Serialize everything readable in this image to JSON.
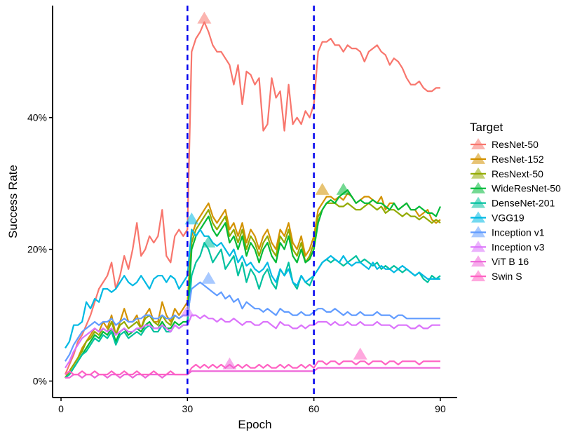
{
  "chart_data": {
    "type": "line",
    "xlabel": "Epoch",
    "ylabel": "Success Rate",
    "xlim": [
      -2,
      94
    ],
    "ylim": [
      -2.5,
      57
    ],
    "x_ticks": [
      0,
      30,
      60,
      90
    ],
    "x_tick_labels": [
      "0",
      "30",
      "60",
      "90"
    ],
    "y_ticks": [
      0,
      20,
      40
    ],
    "y_tick_labels": [
      "0%",
      "20%",
      "40%"
    ],
    "vlines": [
      30,
      60
    ],
    "vline_color": "#0000ee",
    "legend_title": "Target",
    "legend_position": "right",
    "grid": false,
    "series": [
      {
        "name": "ResNet-50",
        "color": "#F8766D",
        "values": [
          1,
          2.5,
          4,
          6,
          7,
          8.5,
          10,
          12,
          14,
          15,
          16,
          18,
          14,
          16,
          19,
          17,
          20,
          24,
          19,
          20,
          22,
          21,
          22,
          26,
          19,
          18,
          22,
          23,
          22,
          23,
          50,
          52,
          53,
          54.5,
          53,
          51,
          50,
          50,
          49,
          48,
          45,
          48,
          42,
          47,
          46.5,
          45,
          46,
          38,
          39,
          46,
          43,
          44,
          38,
          45,
          39,
          40,
          39,
          41,
          40,
          42,
          50,
          51.5,
          51.5,
          52,
          51,
          51,
          50,
          51,
          50.5,
          50.5,
          50,
          48.5,
          50,
          50.5,
          51,
          50,
          49.5,
          48,
          49,
          48.5,
          47.5,
          46,
          45,
          45,
          45.5,
          44.5,
          44,
          44,
          44.5,
          44.5
        ],
        "marker_epoch": 34,
        "marker_value": 55
      },
      {
        "name": "ResNet-152",
        "color": "#D39200",
        "values": [
          0.5,
          1.5,
          2.5,
          3.5,
          5,
          6,
          7,
          8,
          7.5,
          9,
          8,
          10,
          7,
          9,
          11,
          9,
          9,
          10,
          8,
          10,
          11,
          9,
          9,
          12,
          10,
          9,
          11,
          10,
          11,
          12,
          22,
          24,
          25,
          26,
          27,
          25,
          24,
          25,
          26,
          23,
          24,
          22,
          24,
          21,
          23,
          22,
          20,
          22,
          23,
          21,
          20,
          23,
          22,
          24,
          21,
          20,
          22,
          19,
          20,
          22,
          26,
          27,
          28,
          28,
          27.5,
          28,
          27.5,
          28.5,
          28,
          27,
          27.5,
          28,
          28,
          27.5,
          27,
          28,
          26,
          27,
          27,
          26,
          26.5,
          27,
          26,
          26,
          25,
          25.5,
          26,
          24.5,
          24,
          24.5
        ],
        "marker_epoch": 62,
        "marker_value": 29
      },
      {
        "name": "ResNext-50",
        "color": "#93AA00",
        "values": [
          0.5,
          1.5,
          2.5,
          3.5,
          4.5,
          6,
          6.5,
          7.5,
          7,
          8,
          7.5,
          9,
          7,
          8.5,
          9,
          8,
          8.5,
          9,
          8,
          9.5,
          10,
          9,
          8.5,
          10,
          9,
          8.5,
          10,
          9.5,
          10,
          10,
          21,
          23,
          24,
          25,
          26,
          24,
          23,
          24,
          25,
          22,
          23,
          21,
          23,
          20,
          22,
          21,
          19,
          21,
          22,
          20,
          19,
          22,
          21,
          23,
          20,
          19,
          21,
          18,
          19,
          21,
          25,
          26,
          27,
          27,
          27,
          26.5,
          26.5,
          27,
          26.5,
          26,
          26,
          26.5,
          27,
          26.5,
          26,
          26.5,
          25.5,
          26,
          26,
          25.5,
          25,
          25.5,
          25,
          25,
          24.5,
          25,
          24.5,
          24,
          24.5,
          24
        ],
        "marker_epoch": null,
        "marker_value": null
      },
      {
        "name": "WideResNet-50",
        "color": "#00BA38",
        "values": [
          0.5,
          1,
          2,
          3,
          4,
          5,
          6,
          7,
          6.5,
          7.5,
          7,
          8,
          6,
          7.5,
          8,
          7,
          7.5,
          8,
          7.5,
          8.5,
          9,
          8,
          8,
          9,
          8,
          8,
          9,
          8.5,
          9,
          9,
          20,
          22,
          23,
          24,
          25,
          23,
          22,
          23,
          24,
          21,
          22,
          20,
          22,
          19,
          21,
          20,
          18,
          20,
          21,
          19,
          18,
          21,
          20,
          22,
          19,
          18,
          20,
          18,
          18.5,
          20,
          24,
          26,
          27,
          27.5,
          27,
          28,
          28.5,
          29,
          28,
          27,
          27.5,
          27,
          27,
          27.5,
          27,
          27,
          26.5,
          26,
          27,
          26,
          26.5,
          27,
          26,
          26,
          26.5,
          26,
          25.5,
          25.5,
          25,
          26.5
        ],
        "marker_epoch": 67,
        "marker_value": 29
      },
      {
        "name": "DenseNet-201",
        "color": "#00C19F",
        "values": [
          0.5,
          1,
          2,
          3,
          4,
          4.5,
          5.5,
          6.5,
          6,
          7,
          6.5,
          7.5,
          5.5,
          7,
          7.5,
          6.5,
          7,
          7.5,
          7,
          8,
          8.5,
          7.5,
          7.5,
          8.5,
          7.5,
          7.5,
          8.5,
          8,
          8.5,
          8.5,
          16,
          18,
          19,
          21,
          20,
          18,
          19,
          20,
          17,
          18,
          19,
          16,
          18,
          15,
          17,
          16,
          14,
          16,
          17,
          15,
          14,
          17,
          16,
          18,
          15,
          14,
          16,
          15,
          14.5,
          16,
          17,
          18,
          18.5,
          18,
          18.5,
          18,
          17.5,
          18,
          18.5,
          19,
          18,
          18.5,
          18,
          17.5,
          18,
          17,
          17.5,
          17,
          17.5,
          17,
          16.5,
          17,
          16.5,
          16,
          16.5,
          15.5,
          15,
          16,
          15.5,
          16
        ],
        "marker_epoch": 35,
        "marker_value": 21
      },
      {
        "name": "VGG19",
        "color": "#00B9E3",
        "values": [
          5,
          6,
          8.5,
          8.5,
          9,
          12,
          11,
          12.5,
          12,
          14,
          14,
          13.5,
          14,
          15,
          16,
          15,
          14.5,
          15,
          16,
          15,
          14,
          15.5,
          16,
          16,
          15,
          16,
          15.5,
          14,
          15,
          16,
          23,
          22,
          23,
          22,
          22,
          21,
          20.5,
          21,
          20,
          19,
          20,
          18,
          19,
          17.5,
          18,
          17,
          16.5,
          17,
          18,
          16,
          15,
          17,
          16,
          17,
          15,
          14.5,
          16,
          15,
          15.5,
          16,
          17,
          18,
          18.5,
          19,
          18.5,
          18,
          19,
          18,
          17.5,
          18,
          18,
          17.5,
          17,
          18,
          17,
          17.5,
          17,
          17,
          16.5,
          17,
          17.5,
          17,
          16.5,
          16,
          16.5,
          16,
          15.5,
          15.5,
          15.5,
          15.5
        ],
        "marker_epoch": 31,
        "marker_value": 24.5
      },
      {
        "name": "Inception v1",
        "color": "#619CFF",
        "values": [
          3,
          4,
          5.5,
          6.5,
          7.5,
          8,
          8.5,
          9,
          8.5,
          9,
          9,
          9.5,
          8.5,
          9,
          9.5,
          9,
          9,
          9.5,
          9.5,
          10,
          10,
          9.5,
          9.5,
          10,
          9.5,
          9.5,
          10,
          9.5,
          10,
          10,
          14,
          14.5,
          15,
          14.5,
          14,
          13.5,
          13,
          13.5,
          12.5,
          13,
          12,
          12.5,
          11,
          12,
          11.5,
          11,
          11,
          10.5,
          11,
          10.5,
          10,
          11,
          10.5,
          10.5,
          10,
          10,
          10.5,
          10,
          10,
          10.5,
          11,
          11,
          10.5,
          10.5,
          11,
          10.5,
          10,
          10.5,
          10,
          10,
          10.5,
          10,
          10,
          10,
          10.5,
          10,
          10,
          10,
          9.5,
          10,
          10,
          9.5,
          9.5,
          9.5,
          9.5,
          9.5,
          9.5,
          9.5,
          9.5,
          9.5
        ],
        "marker_epoch": 35,
        "marker_value": 15.5
      },
      {
        "name": "Inception v3",
        "color": "#DB72FB",
        "values": [
          2,
          3,
          4.5,
          5.5,
          6.5,
          7,
          7.5,
          8,
          7.5,
          8,
          7.5,
          8,
          7,
          7.5,
          8,
          7.5,
          7.5,
          8,
          8,
          8.5,
          8.5,
          8,
          8,
          8.5,
          8,
          7.5,
          8.5,
          8,
          8.5,
          8.5,
          10,
          10,
          9.5,
          10,
          9.5,
          9.5,
          9,
          9.5,
          9,
          9,
          9.5,
          9,
          8.5,
          9,
          9,
          8.5,
          8.5,
          9,
          9,
          8.5,
          8,
          9,
          8.5,
          8.5,
          8,
          8,
          8.5,
          8,
          8.5,
          8.5,
          9,
          9,
          9,
          8.5,
          9,
          8.5,
          8.5,
          9,
          8.5,
          8.5,
          9,
          8.5,
          8.5,
          8.5,
          9,
          8.5,
          8.5,
          8.5,
          8,
          8.5,
          8.5,
          8.5,
          8,
          8,
          8.5,
          8,
          8,
          8.5,
          8.5,
          8.5
        ],
        "marker_epoch": 30,
        "marker_value": 10.5
      },
      {
        "name": "ViT B 16",
        "color": "#EE64D8",
        "values": [
          0.5,
          0.5,
          1,
          1,
          0.5,
          1,
          1,
          0.5,
          1,
          1,
          0.5,
          1,
          1,
          0.5,
          1,
          1,
          0.5,
          1,
          1,
          0.5,
          1,
          1,
          1,
          0.5,
          1,
          1,
          1,
          1,
          1,
          1,
          1.5,
          1.5,
          1.5,
          1.5,
          1.5,
          1.5,
          1.5,
          1.5,
          1.5,
          1.5,
          1.5,
          1.5,
          1.5,
          1.5,
          1.5,
          1.5,
          1.5,
          1.5,
          1.5,
          1.5,
          1.5,
          1.5,
          1.5,
          1.5,
          1.5,
          1.5,
          1.5,
          1.5,
          1.5,
          1.5,
          2,
          2,
          2,
          2,
          2,
          2,
          2,
          2,
          2,
          2,
          2,
          2,
          2,
          2,
          2,
          2,
          2,
          2,
          2,
          2,
          2,
          2,
          2,
          2,
          2,
          2,
          2,
          2,
          2,
          2
        ],
        "marker_epoch": 40,
        "marker_value": 2.5
      },
      {
        "name": "Swin S",
        "color": "#FF61C3",
        "values": [
          1,
          1.5,
          1,
          1,
          1.5,
          1,
          1,
          1.5,
          1,
          1,
          1,
          1.5,
          1,
          1,
          1.5,
          1,
          1,
          1.5,
          1,
          1,
          1,
          1.5,
          1,
          1,
          1,
          1.5,
          1,
          1,
          1,
          1,
          2,
          2.5,
          2,
          2.5,
          2,
          2.5,
          2,
          2.5,
          2,
          2.5,
          2,
          2.5,
          2,
          2.5,
          2,
          2,
          2.5,
          2,
          2.5,
          2,
          2,
          2.5,
          2,
          2.5,
          2,
          2,
          2.5,
          2,
          2.5,
          2,
          3,
          3,
          2.5,
          3,
          3,
          2.5,
          3,
          3,
          3,
          2.5,
          3,
          3,
          2.5,
          3,
          3,
          3,
          2.5,
          3,
          3,
          2.5,
          3,
          3,
          3,
          3,
          2.5,
          3,
          3,
          3,
          3,
          3
        ],
        "marker_epoch": 71,
        "marker_value": 4
      }
    ]
  }
}
